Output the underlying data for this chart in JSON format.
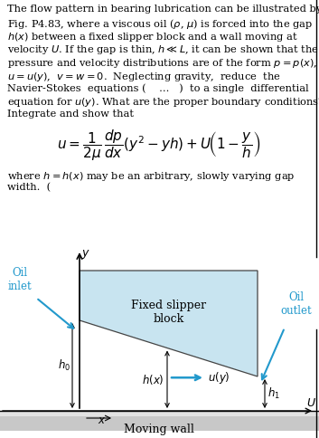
{
  "bg_color": "#ffffff",
  "text_color": "#000000",
  "cyan_color": "#2299cc",
  "block_fill_color": "#c8e4f0",
  "block_edge_color": "#444444",
  "wall_top_color": "#e0e0e0",
  "wall_bot_color": "#b8b8b8",
  "body_text_lines": [
    "The flow pattern in bearing lubrication can be illustrated by",
    "Fig. P4.83, where a viscous oil ($\\rho$, $\\mu$) is forced into the gap",
    "$h(x)$ between a fixed slipper block and a wall moving at",
    "velocity $U$. If the gap is thin, $h \\ll L$, it can be shown that the",
    "pressure and velocity distributions are of the form $p = p(x)$,",
    "$u = u(y)$,  $v = w = 0$.  Neglecting gravity,  reduce  the",
    "Navier-Stokes  equations (    ...   )  to a single  differential",
    "equation for $u(y)$. What are the proper boundary conditions?",
    "Integrate and show that"
  ],
  "where_line1": "where $h = h(x)$ may be an arbitrary, slowly varying gap",
  "where_line2": "width.  (",
  "right_bar_color": "#888888",
  "text_fontsize": 8.2,
  "eq_fontsize": 11
}
